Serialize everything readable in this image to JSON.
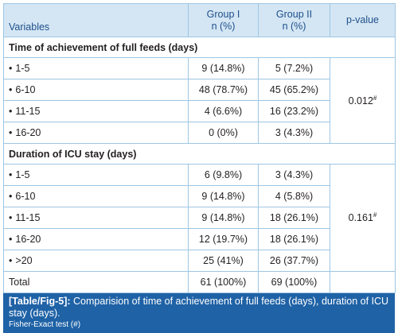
{
  "table": {
    "headers": {
      "variables": "Variables",
      "group1_line1": "Group I",
      "group1_line2": "n (%)",
      "group2_line1": "Group II",
      "group2_line2": "n (%)",
      "pvalue": "p-value"
    },
    "bullet": "•",
    "section1": {
      "title": "Time of achievement of full feeds (days)",
      "rows": [
        {
          "label": "1-5",
          "g1": "9 (14.8%)",
          "g2": "5 (7.2%)"
        },
        {
          "label": "6-10",
          "g1": "48 (78.7%)",
          "g2": "45 (65.2%)"
        },
        {
          "label": "11-15",
          "g1": "4 (6.6%)",
          "g2": "16 (23.2%)"
        },
        {
          "label": "16-20",
          "g1": "0 (0%)",
          "g2": "3 (4.3%)"
        }
      ],
      "pvalue": "0.012",
      "pvalue_mark": "#"
    },
    "section2": {
      "title": "Duration of ICU stay (days)",
      "rows": [
        {
          "label": "1-5",
          "g1": "6 (9.8%)",
          "g2": "3 (4.3%)"
        },
        {
          "label": "6-10",
          "g1": "9 (14.8%)",
          "g2": "4 (5.8%)"
        },
        {
          "label": "11-15",
          "g1": "9 (14.8%)",
          "g2": "18 (26.1%)"
        },
        {
          "label": "16-20",
          "g1": "12 (19.7%)",
          "g2": "18 (26.1%)"
        },
        {
          "label": ">20",
          "g1": "25 (41%)",
          "g2": "26 (37.7%)"
        }
      ],
      "pvalue": "0.161",
      "pvalue_mark": "#"
    },
    "total": {
      "label": "Total",
      "g1": "61 (100%)",
      "g2": "69 (100%)"
    }
  },
  "caption": {
    "label": "[Table/Fig-5]:",
    "text": "Comparision of time of achievement of full feeds (days), duration of ICU stay (days).",
    "note": "Fisher-Exact test (#)"
  },
  "colors": {
    "header_bg": "#d4e6f4",
    "header_text": "#1f4f8a",
    "border": "#9ec6e3",
    "caption_bg": "#1f62a6"
  }
}
